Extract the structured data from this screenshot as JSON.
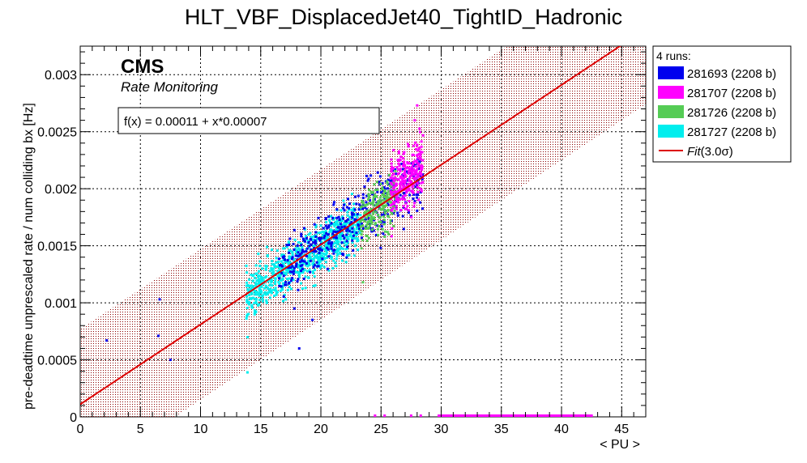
{
  "chart_data": {
    "type": "scatter",
    "title": "HLT_VBF_DisplacedJet40_TightID_Hadronic",
    "xlabel": "< PU >",
    "ylabel": "pre-deadtime unprescaled rate / num colliding bx [Hz]",
    "xlim": [
      0,
      47
    ],
    "ylim": [
      0,
      0.00325
    ],
    "x_ticks": [
      0,
      5,
      10,
      15,
      20,
      25,
      30,
      35,
      40,
      45
    ],
    "y_ticks": [
      0,
      0.0005,
      0.001,
      0.0015,
      0.002,
      0.0025,
      0.003
    ],
    "y_tick_labels": [
      "0",
      "0.0005",
      "0.001",
      "0.0015",
      "0.002",
      "0.0025",
      "0.003"
    ],
    "grid": true,
    "legend_position": "right",
    "legend_title": "4 runs:",
    "cms_label": "CMS",
    "cms_sublabel": "Rate Monitoring",
    "fit_formula": "f(x) = 0.00011 + x*0.00007",
    "fit": {
      "name_main": "Fit",
      "name_suffix": "(3.0σ)",
      "intercept": 0.00011,
      "slope": 7e-05,
      "band_halfwidth": 0.00066,
      "color": "#dd0000"
    },
    "series": [
      {
        "name": "281693 (2208 b)",
        "color": "#0000ee",
        "cluster": {
          "x_range": [
            16.5,
            28.5
          ],
          "y_center_offset": 0.0,
          "y_spread": 0.00022,
          "count": 420
        },
        "points": [
          [
            2.2,
            0.00067
          ],
          [
            6.5,
            0.00071
          ],
          [
            6.6,
            0.00103
          ],
          [
            7.5,
            0.0005
          ],
          [
            18.2,
            0.0006
          ],
          [
            17.8,
            0.00095
          ],
          [
            19.3,
            0.00085
          ]
        ]
      },
      {
        "name": "281707 (2208 b)",
        "color": "#ff00ff",
        "cluster": {
          "x_range": [
            25.8,
            28.5
          ],
          "y_center_offset": 0.0001,
          "y_spread": 0.00022,
          "count": 260
        },
        "points": [
          [
            28.0,
            0.00273
          ],
          [
            27.8,
            0.0026
          ]
        ],
        "baseline_x_range": [
          29.7,
          42.6
        ],
        "baseline_dots": [
          24.5,
          25.3,
          27.5,
          28.3
        ]
      },
      {
        "name": "281726 (2208 b)",
        "color": "#55cc55",
        "cluster": {
          "x_range": [
            23.3,
            26.2
          ],
          "y_center_offset": -2e-05,
          "y_spread": 0.00018,
          "count": 200
        },
        "points": [
          [
            23.5,
            0.00118
          ]
        ]
      },
      {
        "name": "281727 (2208 b)",
        "color": "#00eeee",
        "cluster": {
          "x_range": [
            13.8,
            23.3
          ],
          "y_center_offset": -3e-05,
          "y_spread": 0.00017,
          "count": 780
        },
        "points": [
          [
            13.9,
            0.00039
          ]
        ]
      }
    ]
  }
}
